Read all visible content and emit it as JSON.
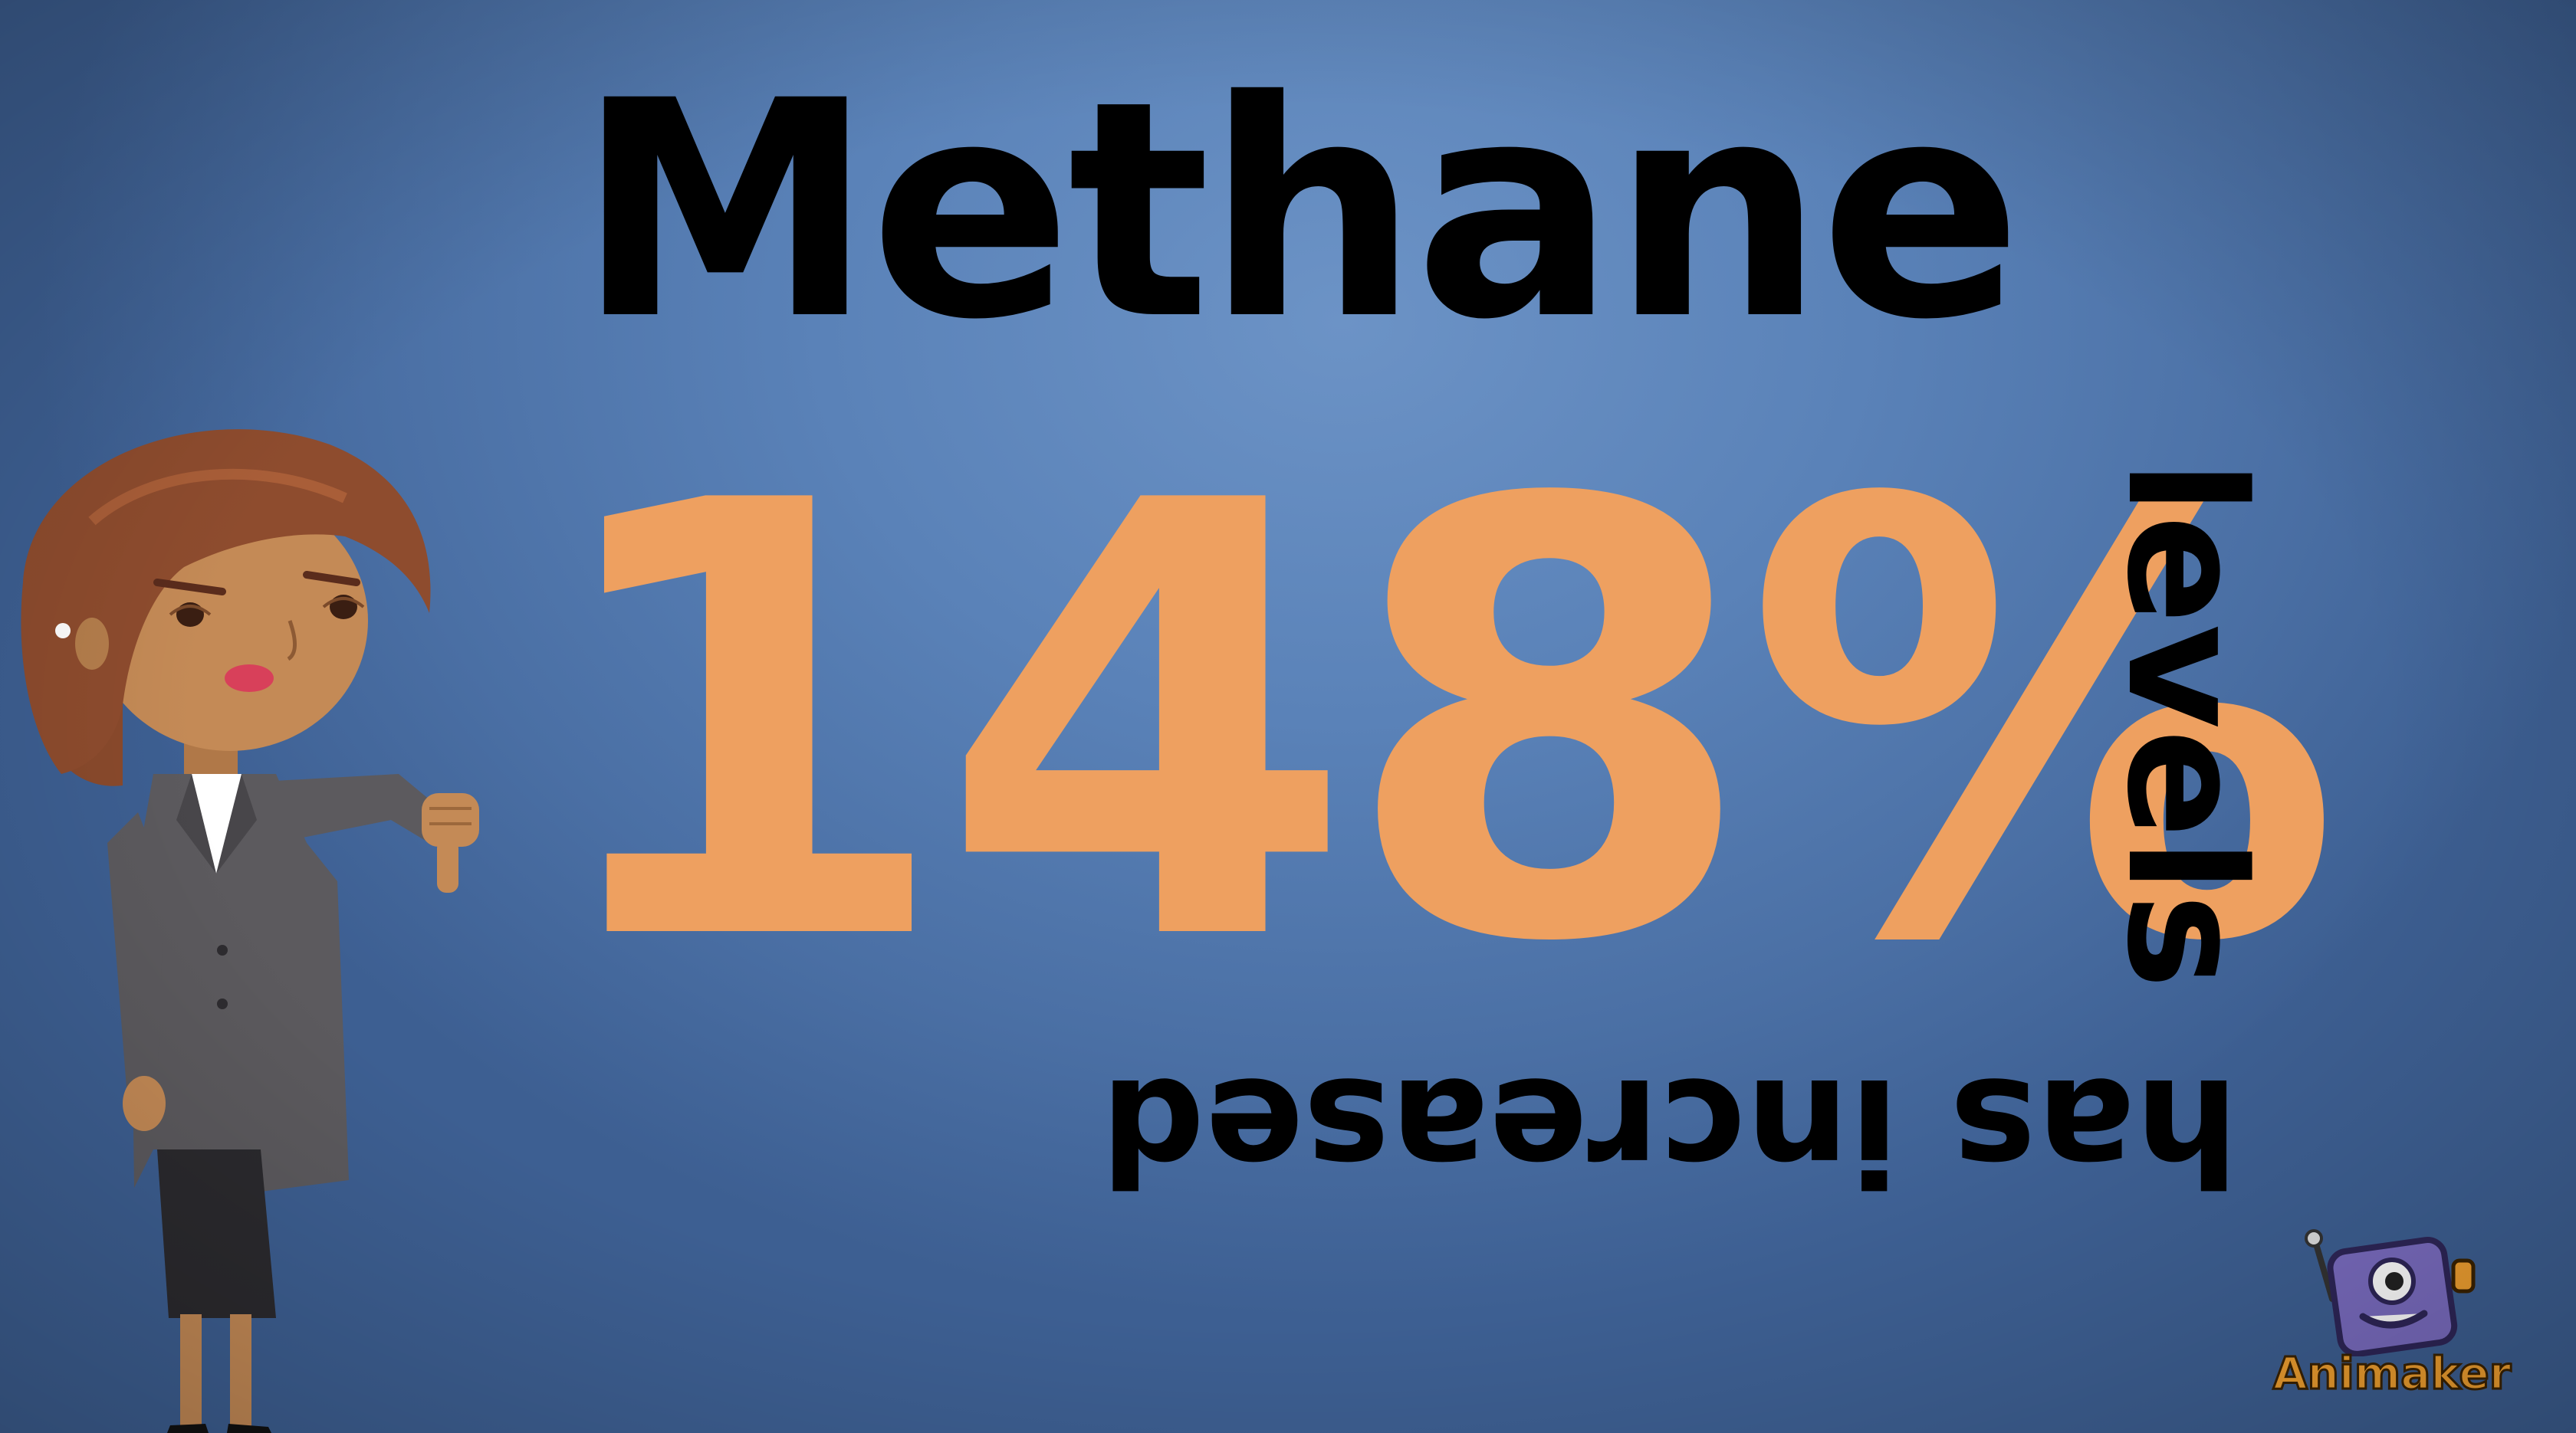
{
  "headline": "Methane",
  "statistic": "148%",
  "side_word": "levels",
  "bottom_phrase": "has increased",
  "brand": {
    "name": "Animaker",
    "icon": "animaker-mascot-icon"
  },
  "character": {
    "icon": "worried-woman-thumbs-down-icon"
  },
  "colors": {
    "background": "#5a82b8",
    "statistic": "#eea060",
    "text": "#000000",
    "brand_text": "#f0a030"
  }
}
